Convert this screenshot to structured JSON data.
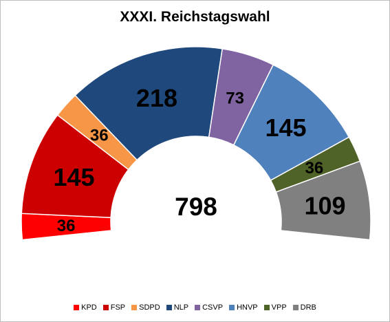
{
  "chart_data": {
    "type": "pie",
    "subtype": "half-donut parliament",
    "title": "XXXI. Reichstagswahl",
    "total": 798,
    "total_label": "798",
    "direction": "clockwise from bottom-left to bottom-right",
    "series": [
      {
        "name": "KPD",
        "value": 36,
        "color": "#ff0000"
      },
      {
        "name": "FSP",
        "value": 145,
        "color": "#cc0000"
      },
      {
        "name": "SDPD",
        "value": 36,
        "color": "#f79646"
      },
      {
        "name": "NLP",
        "value": 218,
        "color": "#1f497d"
      },
      {
        "name": "CSVP",
        "value": 73,
        "color": "#8064a2"
      },
      {
        "name": "HNVP",
        "value": 145,
        "color": "#4f81bd"
      },
      {
        "name": "VPP",
        "value": 36,
        "color": "#4f6228"
      },
      {
        "name": "DRB",
        "value": 109,
        "color": "#808080"
      }
    ],
    "legend_position": "bottom"
  }
}
